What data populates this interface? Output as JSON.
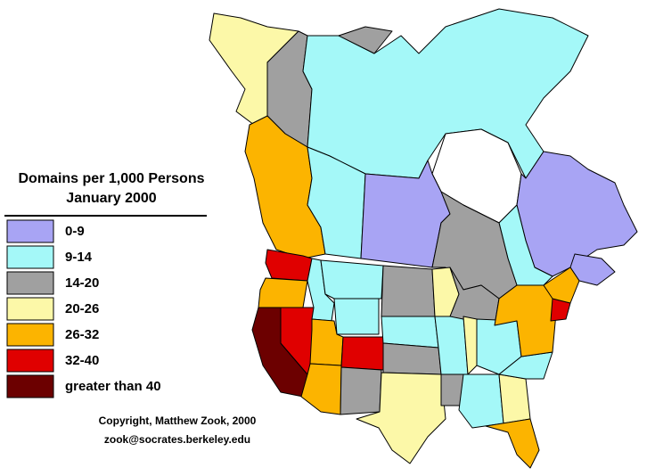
{
  "legend": {
    "title": [
      "Domains per 1,000 Persons",
      "January 2000"
    ],
    "items": [
      {
        "label": "0-9",
        "color": "#a8a4f4"
      },
      {
        "label": "9-14",
        "color": "#a4f8f8"
      },
      {
        "label": "14-20",
        "color": "#a0a0a0"
      },
      {
        "label": "20-26",
        "color": "#fcf8a8"
      },
      {
        "label": "26-32",
        "color": "#fcb400"
      },
      {
        "label": "32-40",
        "color": "#e00000"
      },
      {
        "label": "greater than 40",
        "color": "#6c0000"
      }
    ]
  },
  "footer": [
    "Copyright, Matthew Zook, 2000",
    "zook@socrates.berkeley.edu"
  ]
}
